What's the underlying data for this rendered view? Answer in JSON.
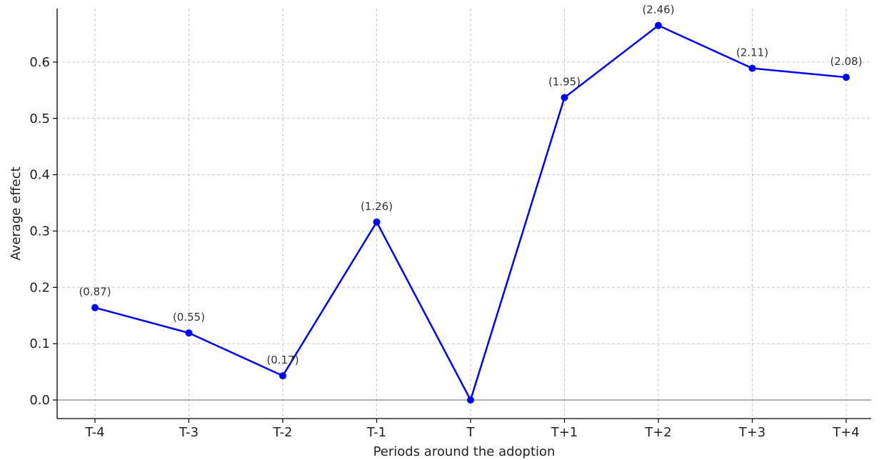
{
  "chart_data": {
    "type": "line",
    "title": "",
    "xlabel": "Periods around the adoption",
    "ylabel": "Average effect",
    "categories": [
      "T-4",
      "T-3",
      "T-2",
      "T-1",
      "T",
      "T+1",
      "T+2",
      "T+3",
      "T+4"
    ],
    "series": [
      {
        "values": [
          0.164,
          0.119,
          0.043,
          0.316,
          0.0,
          0.537,
          0.665,
          0.589,
          0.573
        ],
        "labels": [
          "(0.87)",
          "(0.55)",
          "(0.17)",
          "(1.26)",
          "",
          "(1.95)",
          "(2.46)",
          "(2.11)",
          "(2.08)"
        ],
        "color": "#0000ff"
      }
    ],
    "yticks": [
      "0.0",
      "0.1",
      "0.2",
      "0.3",
      "0.4",
      "0.5",
      "0.6"
    ],
    "ylim": [
      -0.033,
      0.695
    ],
    "grid": true,
    "zero_line": true,
    "legend": "none"
  }
}
